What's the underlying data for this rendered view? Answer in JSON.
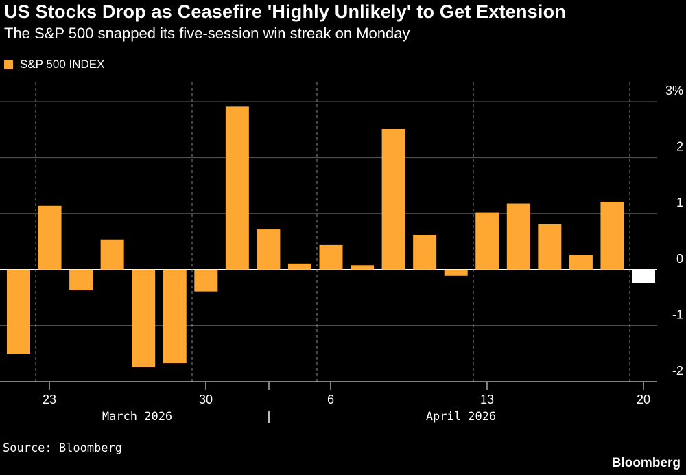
{
  "title": "US Stocks Drop as Ceasefire 'Highly Unlikely' to Get Extension",
  "subtitle": "The S&P 500 snapped its five-session win streak on Monday",
  "legend": {
    "label": "S&P 500 INDEX",
    "color": "#ffa733"
  },
  "source": "Source: Bloomberg",
  "brand": "Bloomberg",
  "chart_data": {
    "type": "bar",
    "series": [
      {
        "name": "S&P 500 INDEX",
        "color": "#ffa733",
        "negative_last_color": "#ffffff",
        "values": [
          -1.51,
          1.14,
          -0.37,
          0.54,
          -1.74,
          -1.67,
          -0.39,
          2.91,
          0.72,
          0.11,
          0.44,
          0.08,
          2.51,
          0.62,
          -0.11,
          1.02,
          1.18,
          0.81,
          0.26,
          1.21,
          -0.24
        ]
      }
    ],
    "x_tick_labels": [
      "23",
      "30",
      "6",
      "13",
      "20"
    ],
    "month_labels": [
      "March 2026",
      "|",
      "April 2026"
    ],
    "y_ticks": [
      -2,
      -1,
      0,
      1,
      2,
      3
    ],
    "y_tick_labels": [
      "-2",
      "-1",
      "0",
      "1",
      "2",
      "3%"
    ],
    "ylim": [
      -2,
      3
    ],
    "ylabel": "",
    "xlabel": "",
    "grid": true
  }
}
